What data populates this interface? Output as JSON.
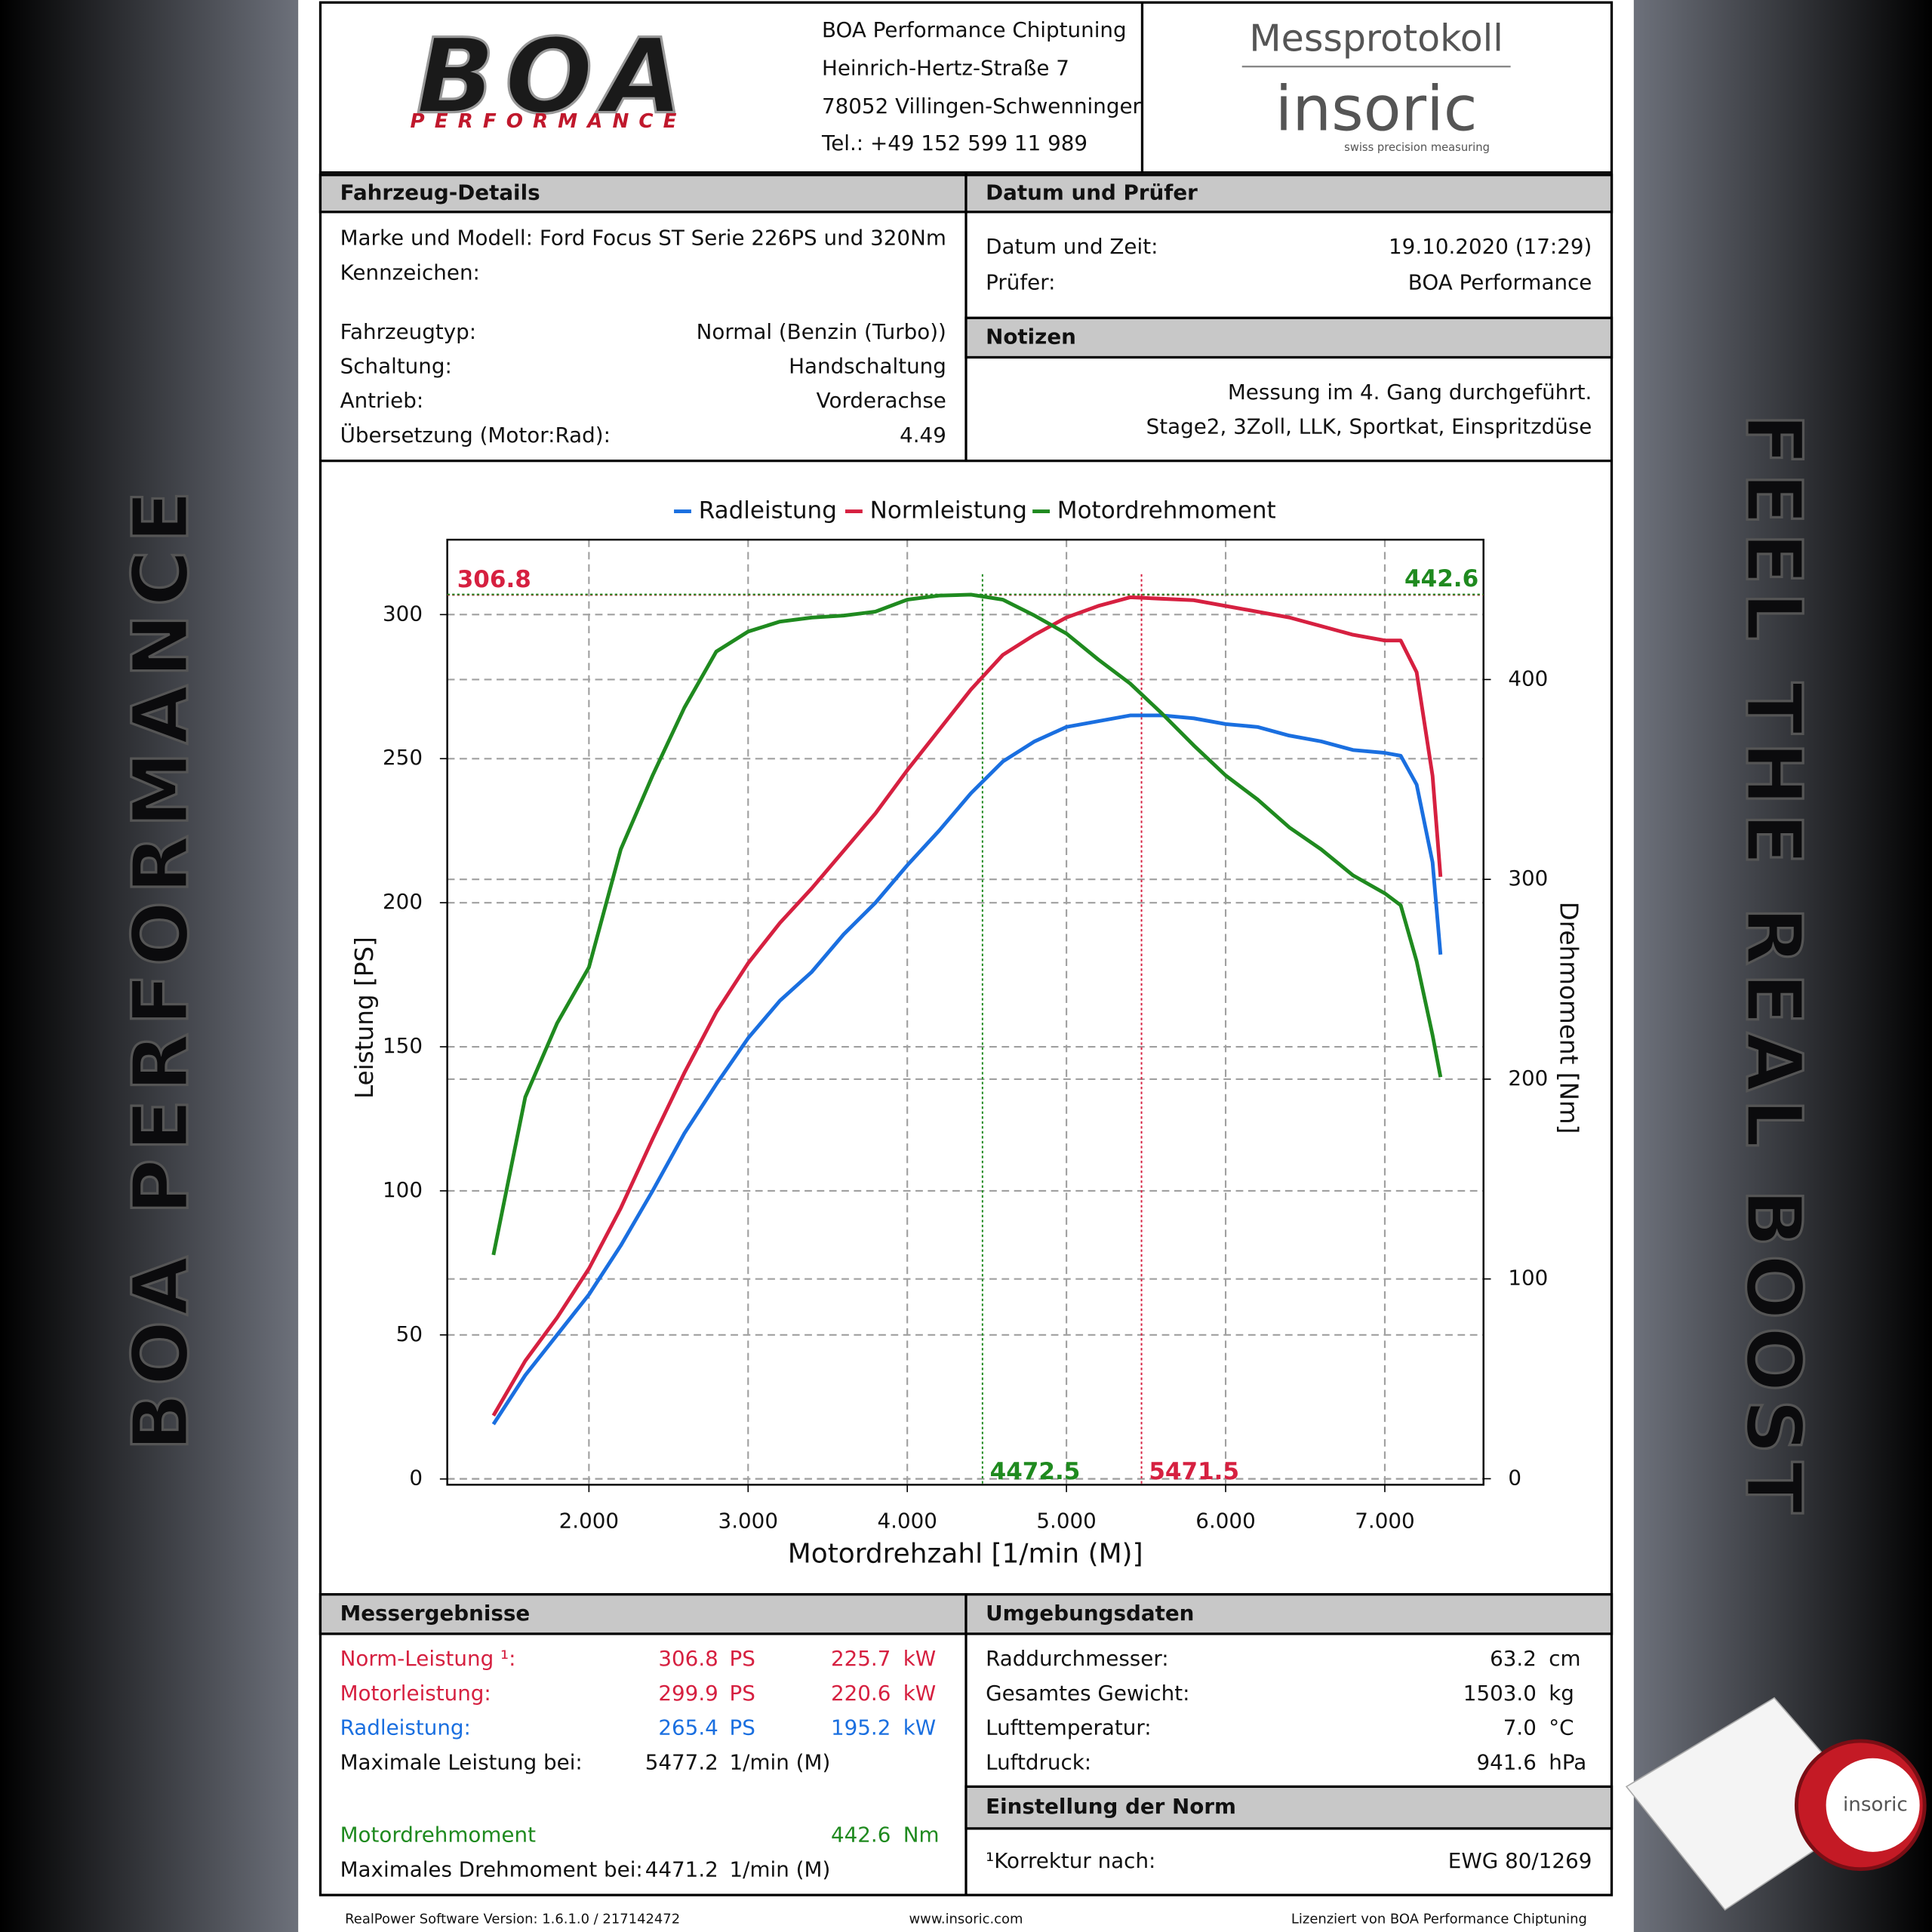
{
  "side_left": "BOA PERFORMANCE",
  "side_right": "FEEL THE REAL BOOST",
  "header": {
    "logo": "BOA",
    "logo_sub": "PERFORMANCE",
    "company": [
      "BOA Performance Chiptuning",
      "Heinrich-Hertz-Straße 7",
      "78052 Villingen-Schwenninger",
      "Tel.: +49 152 599 11 989"
    ],
    "title": "Messprotokoll",
    "brand": "insoric",
    "brand_tagline": "swiss precision measuring"
  },
  "vehicle": {
    "title": "Fahrzeug-Details",
    "rows": [
      [
        "Marke und Modell:",
        "Ford Focus ST Serie 226PS und 320Nm"
      ],
      [
        "Kennzeichen:"
      ],
      [
        "Fahrzeugtyp:",
        "Normal (Benzin (Turbo))"
      ],
      [
        "Schaltung:",
        "Handschaltung"
      ],
      [
        "Antrieb:",
        "Vorderachse"
      ],
      [
        "Übersetzung (Motor:Rad):",
        "4.49"
      ]
    ]
  },
  "date": {
    "title": "Datum und Prüfer",
    "rows": [
      [
        "Datum und Zeit:",
        "19.10.2020 (17:29)"
      ],
      [
        "Prüfer:",
        "BOA Performance"
      ]
    ]
  },
  "notes": {
    "title": "Notizen",
    "lines": [
      "Messung im 4. Gang durchgeführt.",
      "Stage2, 3Zoll, LLK, Sportkat, Einspritzdüse"
    ]
  },
  "chart_data": {
    "type": "line",
    "x_label": "Motordrehzahl [1/min (M)]",
    "y_label": "Leistung [PS]",
    "y2_label": "Drehmoment [Nm]",
    "xlim": [
      1110,
      7620
    ],
    "xticks": [
      {
        "value": 2000,
        "label": "2.000"
      },
      {
        "value": 3000,
        "label": "3.000"
      },
      {
        "value": 4000,
        "label": "4.000"
      },
      {
        "value": 5000,
        "label": "5.000"
      },
      {
        "value": 6000,
        "label": "6.000"
      },
      {
        "value": 7000,
        "label": "7.000"
      }
    ],
    "ylim": [
      -2,
      326
    ],
    "yticks": [
      0,
      50,
      100,
      150,
      200,
      250,
      300
    ],
    "y2lim": [
      -3,
      470
    ],
    "y2ticks": [
      0,
      100,
      200,
      300,
      400
    ],
    "grid": true,
    "x": [
      1400,
      1600,
      1800,
      2000,
      2200,
      2400,
      2600,
      2800,
      3000,
      3200,
      3400,
      3600,
      3800,
      4000,
      4200,
      4400,
      4600,
      4800,
      5000,
      5200,
      5400,
      5600,
      5800,
      6000,
      6200,
      6400,
      6600,
      6800,
      7000,
      7100,
      7200,
      7300,
      7350
    ],
    "series": [
      {
        "name": "Radleistung",
        "color": "#1a6fe0",
        "values": [
          19,
          36,
          50,
          64,
          81,
          100,
          120,
          137,
          153,
          166,
          176,
          189,
          200,
          213,
          225,
          238,
          249,
          256,
          261,
          263,
          265,
          265,
          264,
          262,
          261,
          258,
          256,
          253,
          252,
          251,
          241,
          214,
          182
        ]
      },
      {
        "name": "Normleistung",
        "color": "#d62040",
        "values": [
          22,
          41,
          56,
          73,
          94,
          118,
          141,
          162,
          179,
          193,
          205,
          218,
          231,
          246,
          260,
          274,
          286,
          293,
          299,
          303,
          306,
          305.5,
          305,
          303,
          301,
          299,
          296,
          293,
          291,
          291,
          280,
          244,
          209
        ]
      },
      {
        "name": "Motordrehmoment",
        "color": "#1f8a1f",
        "axis": "y2",
        "values": [
          112,
          191,
          228,
          256,
          315,
          352,
          386,
          414,
          424,
          429,
          431,
          432,
          434,
          440,
          442,
          442.5,
          440,
          432,
          423,
          410,
          398,
          383,
          367,
          352,
          340,
          326,
          315,
          302,
          293,
          287,
          259,
          222,
          201
        ]
      }
    ],
    "markers": [
      {
        "x": 5471.5,
        "y": 306.8,
        "color": "#d62040"
      },
      {
        "x": 4472.5,
        "y": 442.6,
        "axis": "y2",
        "color": "#1f8a1f"
      }
    ]
  },
  "results": {
    "title": "Messergebnisse",
    "rows": [
      {
        "label": "Norm-Leistung ¹:",
        "value": "306.8",
        "unit": "PS",
        "value2": "225.7",
        "unit2": "kW",
        "color": "#d62040"
      },
      {
        "label": "Motorleistung:",
        "value": "299.9",
        "unit": "PS",
        "value2": "220.6",
        "unit2": "kW",
        "color": "#d62040"
      },
      {
        "label": "Radleistung:",
        "value": "265.4",
        "unit": "PS",
        "value2": "195.2",
        "unit2": "kW",
        "color": "#1a6fe0"
      },
      {
        "label": "Maximale Leistung bei:",
        "value": "5477.2",
        "unit": "1/min (M)"
      },
      {
        "label": "Motordrehmoment",
        "value2": "442.6",
        "unit2": "Nm",
        "color": "#1f8a1f"
      },
      {
        "label": "Maximales Drehmoment bei:",
        "value": "4471.2",
        "unit": "1/min (M)"
      }
    ]
  },
  "environment": {
    "title": "Umgebungsdaten",
    "rows": [
      [
        "Raddurchmesser:",
        "63.2",
        "cm"
      ],
      [
        "Gesamtes Gewicht:",
        "1503.0",
        "kg"
      ],
      [
        "Lufttemperatur:",
        "7.0",
        "°C"
      ],
      [
        "Luftdruck:",
        "941.6",
        "hPa"
      ]
    ]
  },
  "norm": {
    "title": "Einstellung der Norm",
    "rows": [
      [
        "¹Korrektur nach:",
        "EWG 80/1269"
      ]
    ]
  },
  "footer": [
    "RealPower Software Version: 1.6.1.0 / 217142472",
    "www.insoric.com",
    "Lizenziert von BOA Performance Chiptuning"
  ]
}
